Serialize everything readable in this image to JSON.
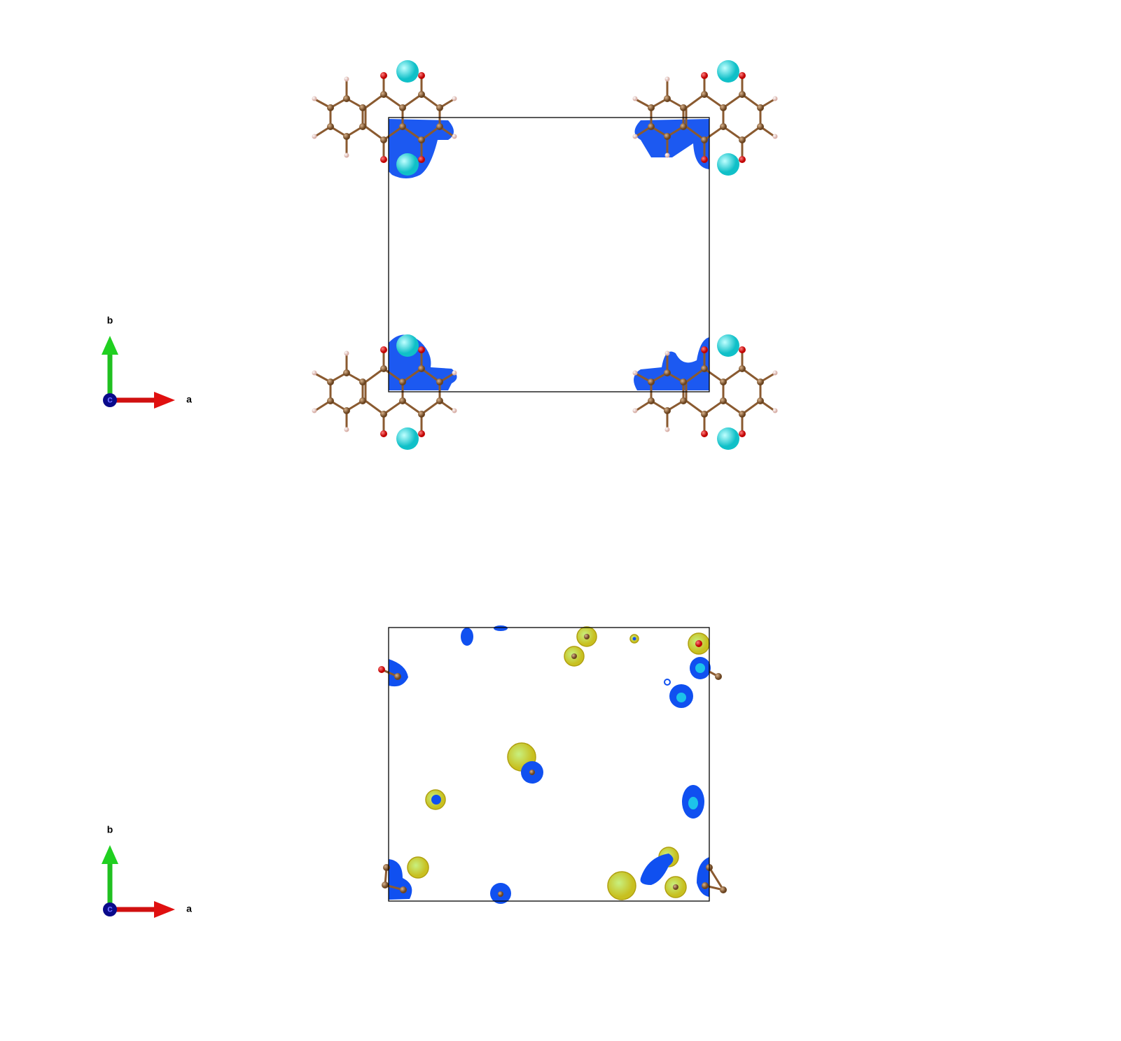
{
  "panels": [
    {
      "axes": {
        "a": "a",
        "b": "b",
        "c": "c"
      }
    },
    {
      "axes": {
        "a": "a",
        "b": "b",
        "c": "c"
      }
    }
  ]
}
